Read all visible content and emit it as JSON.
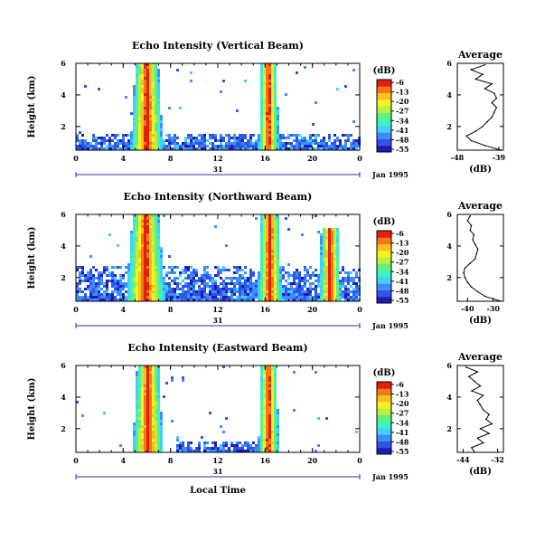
{
  "colors": {
    "scale": [
      "#1c1cb4",
      "#2f55e6",
      "#3f8cff",
      "#3fd0ff",
      "#40f0c0",
      "#60f080",
      "#b8f040",
      "#f8f020",
      "#f8c020",
      "#f87818",
      "#e02010"
    ]
  },
  "chart_data": [
    {
      "type": "heatmap",
      "title": "Echo Intensity (Vertical Beam)",
      "ylabel": "Height (km)",
      "xlabel": "",
      "x_ticks": [
        "0",
        "4",
        "8",
        "12",
        "16",
        "20",
        "0"
      ],
      "y_ticks": [
        "2",
        "4",
        "6"
      ],
      "date_axis": {
        "day": "31",
        "month_year": "Jan 1995"
      },
      "xlim": [
        0,
        24
      ],
      "ylim": [
        0.5,
        6
      ],
      "colorbar": {
        "unit": "(dB)",
        "ticks": [
          "-6",
          "-13",
          "-20",
          "-27",
          "-34",
          "-41",
          "-48",
          "-55"
        ]
      },
      "features": [
        {
          "type": "layer",
          "x": [
            0,
            24
          ],
          "y": [
            0.5,
            1.6
          ]
        },
        {
          "type": "plume",
          "x_center": 6.0,
          "width": 1.6,
          "y_top": 6.0
        },
        {
          "type": "plume",
          "x_center": 16.3,
          "width": 0.5,
          "y_top": 6.0
        }
      ],
      "average_profile": {
        "title": "Average",
        "xlabel": "(dB)",
        "x_ticks": [
          "-48",
          "-39"
        ],
        "y_ticks": [
          "2",
          "4",
          "6"
        ],
        "xlim": [
          -48,
          -38
        ],
        "height_km": [
          0.5,
          0.8,
          1.1,
          1.4,
          1.7,
          2.0,
          2.3,
          2.6,
          2.9,
          3.2,
          3.5,
          3.8,
          4.1,
          4.4,
          4.7,
          5.0,
          5.3,
          5.6,
          5.9
        ],
        "value_db": [
          -38.5,
          -42,
          -45,
          -46,
          -44,
          -42.5,
          -41.5,
          -40.5,
          -40,
          -39.5,
          -40.5,
          -39.5,
          -40,
          -42,
          -40.5,
          -44,
          -42.5,
          -45,
          -42
        ]
      }
    },
    {
      "type": "heatmap",
      "title": "Echo Intensity (Northward Beam)",
      "ylabel": "Height (km)",
      "xlabel": "",
      "x_ticks": [
        "0",
        "4",
        "8",
        "12",
        "16",
        "20",
        "0"
      ],
      "y_ticks": [
        "2",
        "4",
        "6"
      ],
      "date_axis": {
        "day": "31",
        "month_year": "Jan 1995"
      },
      "xlim": [
        0,
        24
      ],
      "ylim": [
        0.5,
        6
      ],
      "colorbar": {
        "unit": "(dB)",
        "ticks": [
          "-6",
          "-13",
          "-20",
          "-27",
          "-34",
          "-41",
          "-48",
          "-55"
        ]
      },
      "features": [
        {
          "type": "layer",
          "x": [
            0,
            24
          ],
          "y": [
            0.5,
            2.8
          ]
        },
        {
          "type": "plume",
          "x_center": 5.9,
          "width": 2.2,
          "y_top": 6.0
        },
        {
          "type": "plume",
          "x_center": 16.4,
          "width": 0.8,
          "y_top": 6.0
        },
        {
          "type": "plume",
          "x_center": 21.5,
          "width": 0.6,
          "y_top": 5.2
        }
      ],
      "average_profile": {
        "title": "Average",
        "xlabel": "(dB)",
        "x_ticks": [
          "-40",
          "-30"
        ],
        "y_ticks": [
          "2",
          "4",
          "6"
        ],
        "xlim": [
          -44,
          -26
        ],
        "height_km": [
          0.5,
          0.8,
          1.1,
          1.4,
          1.7,
          2.0,
          2.3,
          2.6,
          2.9,
          3.2,
          3.5,
          3.8,
          4.1,
          4.4,
          4.7,
          5.0,
          5.3,
          5.6,
          5.9
        ],
        "value_db": [
          -27,
          -33,
          -36,
          -38.5,
          -40,
          -41,
          -41.5,
          -41,
          -39,
          -37,
          -36.5,
          -36,
          -37,
          -38,
          -37.5,
          -39,
          -38.5,
          -40,
          -39
        ]
      }
    },
    {
      "type": "heatmap",
      "title": "Echo Intensity (Eastward Beam)",
      "ylabel": "Height (km)",
      "xlabel": "Local Time",
      "x_ticks": [
        "0",
        "4",
        "8",
        "12",
        "16",
        "20",
        "0"
      ],
      "y_ticks": [
        "2",
        "4",
        "6"
      ],
      "date_axis": {
        "day": "31",
        "month_year": "Jan 1995"
      },
      "xlim": [
        0,
        24
      ],
      "ylim": [
        0.5,
        6
      ],
      "colorbar": {
        "unit": "(dB)",
        "ticks": [
          "-6",
          "-13",
          "-20",
          "-27",
          "-34",
          "-41",
          "-48",
          "-55"
        ]
      },
      "features": [
        {
          "type": "layer",
          "x": [
            8.5,
            17
          ],
          "y": [
            0.5,
            1.2
          ]
        },
        {
          "type": "plume",
          "x_center": 6.1,
          "width": 1.4,
          "y_top": 6.0
        },
        {
          "type": "plume",
          "x_center": 16.3,
          "width": 0.5,
          "y_top": 6.0
        }
      ],
      "average_profile": {
        "title": "Average",
        "xlabel": "(dB)",
        "x_ticks": [
          "-44",
          "-32"
        ],
        "y_ticks": [
          "2",
          "4",
          "6"
        ],
        "xlim": [
          -46,
          -30
        ],
        "height_km": [
          0.5,
          0.8,
          1.1,
          1.4,
          1.7,
          2.0,
          2.3,
          2.6,
          2.9,
          3.2,
          3.5,
          3.8,
          4.1,
          4.4,
          4.7,
          5.0,
          5.3,
          5.6,
          5.9
        ],
        "value_db": [
          -40,
          -41,
          -37,
          -39,
          -35,
          -38,
          -34,
          -36,
          -35,
          -37,
          -38,
          -39,
          -37,
          -41,
          -38,
          -40,
          -42,
          -39,
          -43
        ]
      }
    }
  ]
}
